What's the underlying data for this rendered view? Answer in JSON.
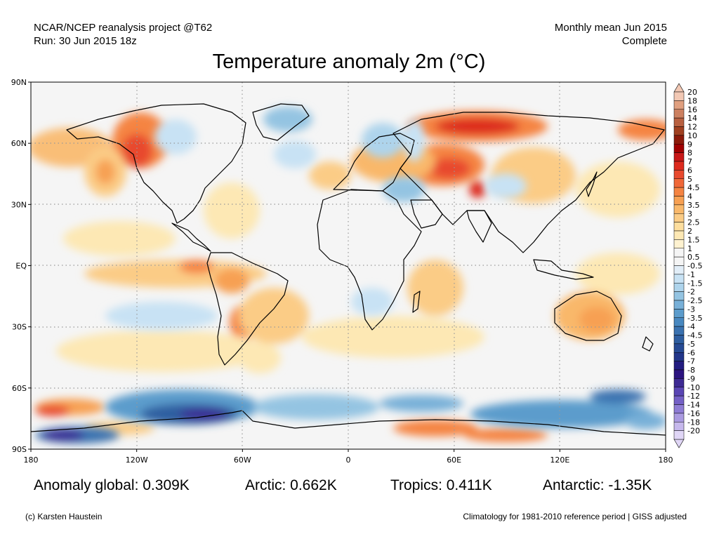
{
  "header": {
    "project": "NCAR/NCEP reanalysis project @T62",
    "run": "Run: 30 Jun 2015 18z",
    "period": "Monthly mean Jun 2015",
    "status": "Complete"
  },
  "title": "Temperature anomaly 2m (°C)",
  "axes": {
    "lat_ticks": [
      "90N",
      "60N",
      "30N",
      "EQ",
      "30S",
      "60S",
      "90S"
    ],
    "lon_ticks": [
      "180",
      "120W",
      "60W",
      "0",
      "60E",
      "120E",
      "180"
    ],
    "lat_range": [
      -90,
      90
    ],
    "lon_range": [
      -180,
      180
    ],
    "grid": true
  },
  "colorbar": {
    "levels": [
      "20",
      "18",
      "16",
      "14",
      "12",
      "10",
      "9",
      "8",
      "7",
      "6",
      "5",
      "4.5",
      "4",
      "3.5",
      "3",
      "2.5",
      "2",
      "1.5",
      "1",
      "0.5",
      "-0.5",
      "-1",
      "-1.5",
      "-2",
      "-2.5",
      "-3",
      "-3.5",
      "-4",
      "-4.5",
      "-5",
      "-6",
      "-7",
      "-8",
      "-9",
      "-10",
      "-12",
      "-14",
      "-16",
      "-18",
      "-20"
    ],
    "colors": [
      "#f2c8b4",
      "#e0a080",
      "#cc8060",
      "#b86040",
      "#a04020",
      "#8c1a0a",
      "#a00000",
      "#c81818",
      "#dd2a1e",
      "#e84a2e",
      "#f06838",
      "#f58442",
      "#f7a052",
      "#f9b86a",
      "#fbcc86",
      "#fdde9e",
      "#fde8b4",
      "#fef2d0",
      "#f5f5f5",
      "#f5f5f5",
      "#e2eef8",
      "#c8e2f4",
      "#aed4ec",
      "#94c4e2",
      "#78b0d8",
      "#5c9ccc",
      "#4888c0",
      "#3a72b0",
      "#2e5ea0",
      "#264a94",
      "#22368a",
      "#221c80",
      "#2c1480",
      "#3e2a94",
      "#5a46b4",
      "#7460c6",
      "#8e7cd4",
      "#aa9ae0",
      "#c6b8ec",
      "#e0d6f6"
    ]
  },
  "stats": {
    "global": "Anomaly global: 0.309K",
    "arctic": "Arctic: 0.662K",
    "tropics": "Tropics: 0.411K",
    "antarctic": "Antarctic: -1.35K"
  },
  "footer": {
    "credit": "(c) Karsten Haustein",
    "note": "Climatology for 1981-2010 reference period | GISS adjusted"
  }
}
